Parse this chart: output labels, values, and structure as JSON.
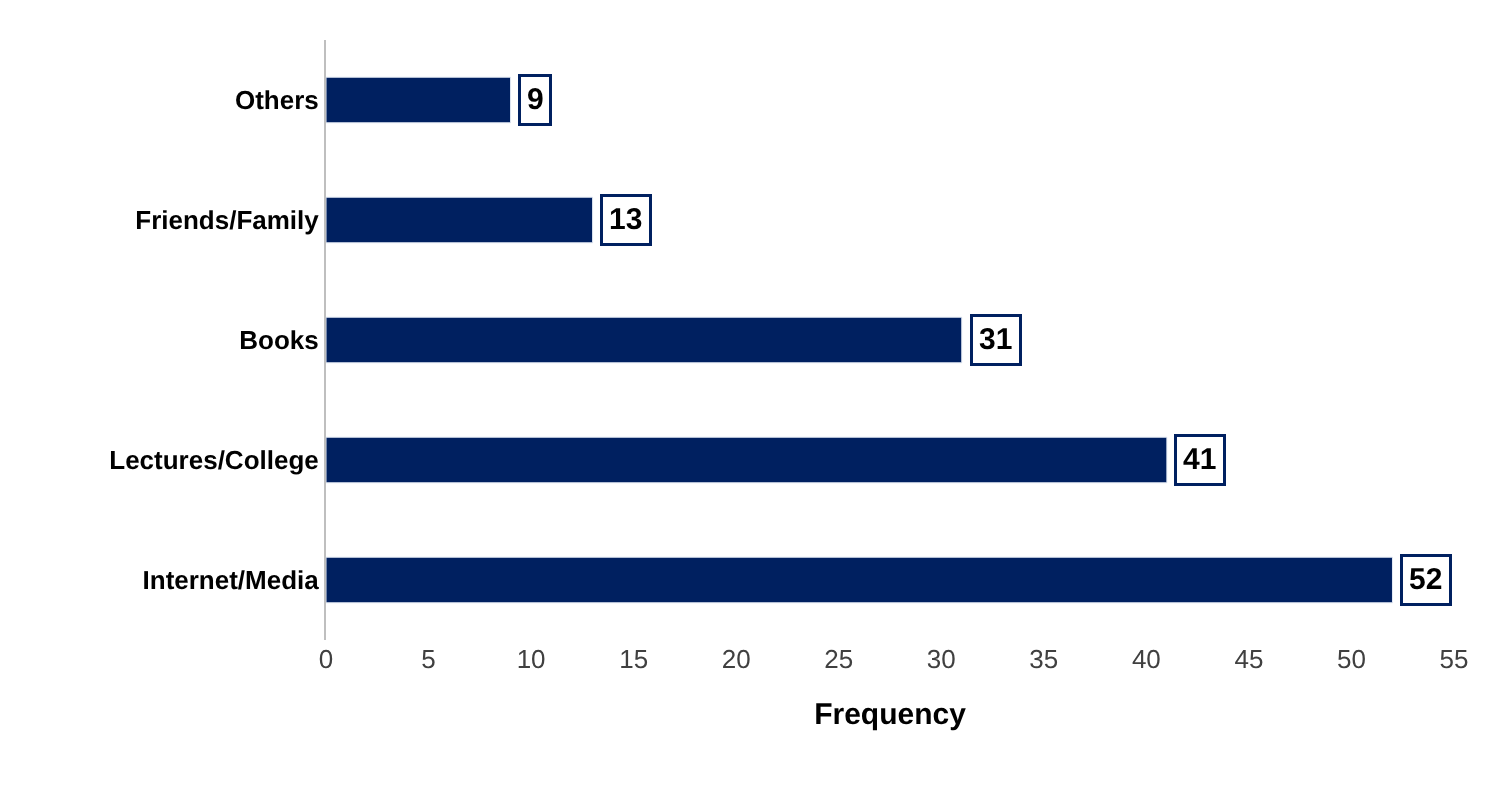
{
  "chart_data": {
    "type": "bar",
    "orientation": "horizontal",
    "xlabel": "Frequency",
    "categories": [
      "Others",
      "Friends/Family",
      "Books",
      "Lectures/College",
      "Internet/Media"
    ],
    "values": [
      9,
      13,
      31,
      41,
      52
    ],
    "color": "#002060",
    "xlim": [
      0,
      55
    ],
    "xticks": [
      0,
      5,
      10,
      15,
      20,
      25,
      30,
      35,
      40,
      45,
      50,
      55
    ],
    "data_labels": true
  }
}
